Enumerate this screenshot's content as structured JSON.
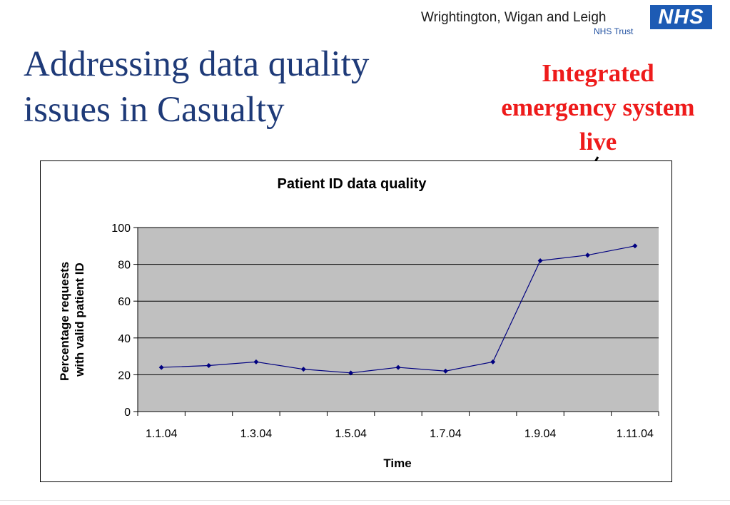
{
  "header": {
    "trust_name": "Wrightington, Wigan and Leigh",
    "trust_subtitle": "NHS Trust",
    "logo_text": "NHS"
  },
  "slide": {
    "title_line1": "Addressing data quality",
    "title_line2": "issues in Casualty",
    "annotation_line1": "Integrated",
    "annotation_line2": "emergency system",
    "annotation_line3": "live"
  },
  "colors": {
    "title": "#1e3a78",
    "annotation": "#ee1b1b",
    "series": "#000080",
    "plot_background": "#c0c0c0"
  },
  "chart_data": {
    "type": "line",
    "title": "Patient ID data quality",
    "xlabel": "Time",
    "ylabel_line1": "Percentage requests",
    "ylabel_line2": "with valid patient ID",
    "x_tick_labels": [
      "1.1.04",
      "1.3.04",
      "1.5.04",
      "1.7.04",
      "1.9.04",
      "1.11.04"
    ],
    "categories": [
      "1.1.04",
      "1.2.04",
      "1.3.04",
      "1.4.04",
      "1.5.04",
      "1.6.04",
      "1.7.04",
      "1.8.04",
      "1.9.04",
      "1.10.04",
      "1.11.04"
    ],
    "values": [
      24,
      25,
      27,
      23,
      21,
      24,
      22,
      27,
      82,
      85,
      90
    ],
    "ylim": [
      0,
      100
    ],
    "y_ticks": [
      0,
      20,
      40,
      60,
      80,
      100
    ],
    "grid": true,
    "legend": false,
    "annotation_arrow_target": "1.9.04"
  }
}
